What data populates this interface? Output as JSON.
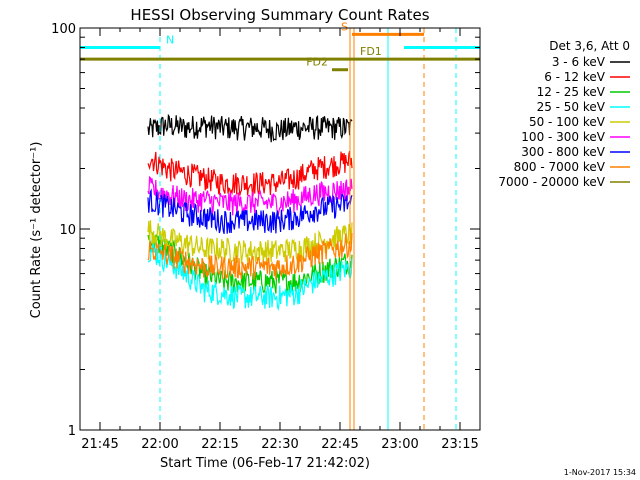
{
  "chart_data": {
    "type": "line",
    "title": "HESSI Observing Summary Count Rates",
    "xlabel": "Start Time (06-Feb-17 21:42:02)",
    "ylabel": "Count Rate (s⁻¹ detector⁻¹)",
    "ylim": [
      1,
      100
    ],
    "yscale": "log",
    "xlim": [
      "21:40",
      "23:20"
    ],
    "x_ticks": [
      "21:45",
      "22:00",
      "22:15",
      "22:30",
      "22:45",
      "23:00",
      "23:15"
    ],
    "y_ticks": [
      "1",
      "10",
      "100"
    ],
    "legend_title": "Det 3,6, Att 0",
    "legend_position": "right",
    "footer": "1-Nov-2017 15:34",
    "series": [
      {
        "name": "3 - 6 keV",
        "color": "#000000",
        "start": "21:57",
        "end": "22:48",
        "values": [
          31,
          33,
          32,
          33,
          32,
          32,
          32,
          31,
          32,
          32,
          32,
          32
        ]
      },
      {
        "name": "6 - 12 keV",
        "color": "#ff0000",
        "start": "21:57",
        "end": "22:48",
        "values": [
          23,
          20,
          19,
          18,
          17,
          17,
          17,
          17,
          18,
          20,
          21,
          22
        ]
      },
      {
        "name": "12 - 25 keV",
        "color": "#00cc00",
        "start": "21:57",
        "end": "22:48",
        "values": [
          9,
          8,
          7,
          6,
          5.5,
          5.5,
          5.5,
          5.5,
          5.5,
          6,
          6.5,
          7
        ]
      },
      {
        "name": "25 - 50 keV",
        "color": "#00ffff",
        "start": "21:57",
        "end": "22:48",
        "values": [
          8,
          7,
          6,
          5,
          4.8,
          4.6,
          4.6,
          4.6,
          4.8,
          5.5,
          6,
          6.5
        ]
      },
      {
        "name": "50 - 100 keV",
        "color": "#cccc00",
        "start": "21:57",
        "end": "22:48",
        "values": [
          10,
          9,
          8.5,
          8,
          8,
          7.8,
          7.8,
          7.8,
          8,
          8.5,
          9,
          9.5
        ]
      },
      {
        "name": "100 - 300 keV",
        "color": "#ff00ff",
        "start": "21:57",
        "end": "22:48",
        "values": [
          16,
          15,
          14,
          14,
          13.5,
          13.5,
          13.5,
          13.5,
          14,
          15,
          15.5,
          16
        ]
      },
      {
        "name": "300 - 800 keV",
        "color": "#0000ff",
        "start": "21:57",
        "end": "22:48",
        "values": [
          14,
          13,
          12,
          11.5,
          11,
          11,
          11,
          11,
          11.5,
          12.5,
          13,
          13.5
        ]
      },
      {
        "name": "800 - 7000 keV",
        "color": "#ff8000",
        "start": "21:57",
        "end": "22:48",
        "values": [
          8,
          7.5,
          7,
          6.5,
          6.5,
          6.5,
          6.5,
          6.5,
          6.8,
          7.5,
          8,
          8.5
        ]
      },
      {
        "name": "7000 - 20000 keV",
        "color": "#808000",
        "start": "21:57",
        "end": "22:48",
        "values": []
      }
    ],
    "annotation_bars": [
      {
        "label": "N",
        "color": "#00ffff",
        "y": 80,
        "start": "21:40",
        "end": "22:00",
        "label_pos": "end"
      },
      {
        "label": "",
        "color": "#00ffff",
        "y": 80,
        "start": "23:01",
        "end": "23:20",
        "label_pos": "none"
      },
      {
        "label": "S",
        "color": "#ff8000",
        "y": 93,
        "start": "22:48",
        "end": "23:06",
        "label_pos": "start"
      },
      {
        "label": "FD1",
        "color": "#808000",
        "y": 70,
        "start": "21:40",
        "end": "23:20",
        "label_pos": "mid"
      },
      {
        "label": "FD2",
        "color": "#808000",
        "y": 62,
        "start": "22:43",
        "end": "22:47",
        "label_pos": "start"
      }
    ],
    "vertical_lines": [
      {
        "time": "21:40",
        "color": "#00ffff",
        "style": "solid"
      },
      {
        "time": "22:00",
        "color": "#00ffff",
        "style": "dashed"
      },
      {
        "time": "22:47.5",
        "color": "#ff8000",
        "style": "solid"
      },
      {
        "time": "22:48.5",
        "color": "#ff8000",
        "style": "solid"
      },
      {
        "time": "22:57",
        "color": "#00ffff",
        "style": "solid"
      },
      {
        "time": "23:06",
        "color": "#ff8000",
        "style": "dashed"
      },
      {
        "time": "23:14",
        "color": "#00ffff",
        "style": "dashed"
      }
    ]
  }
}
